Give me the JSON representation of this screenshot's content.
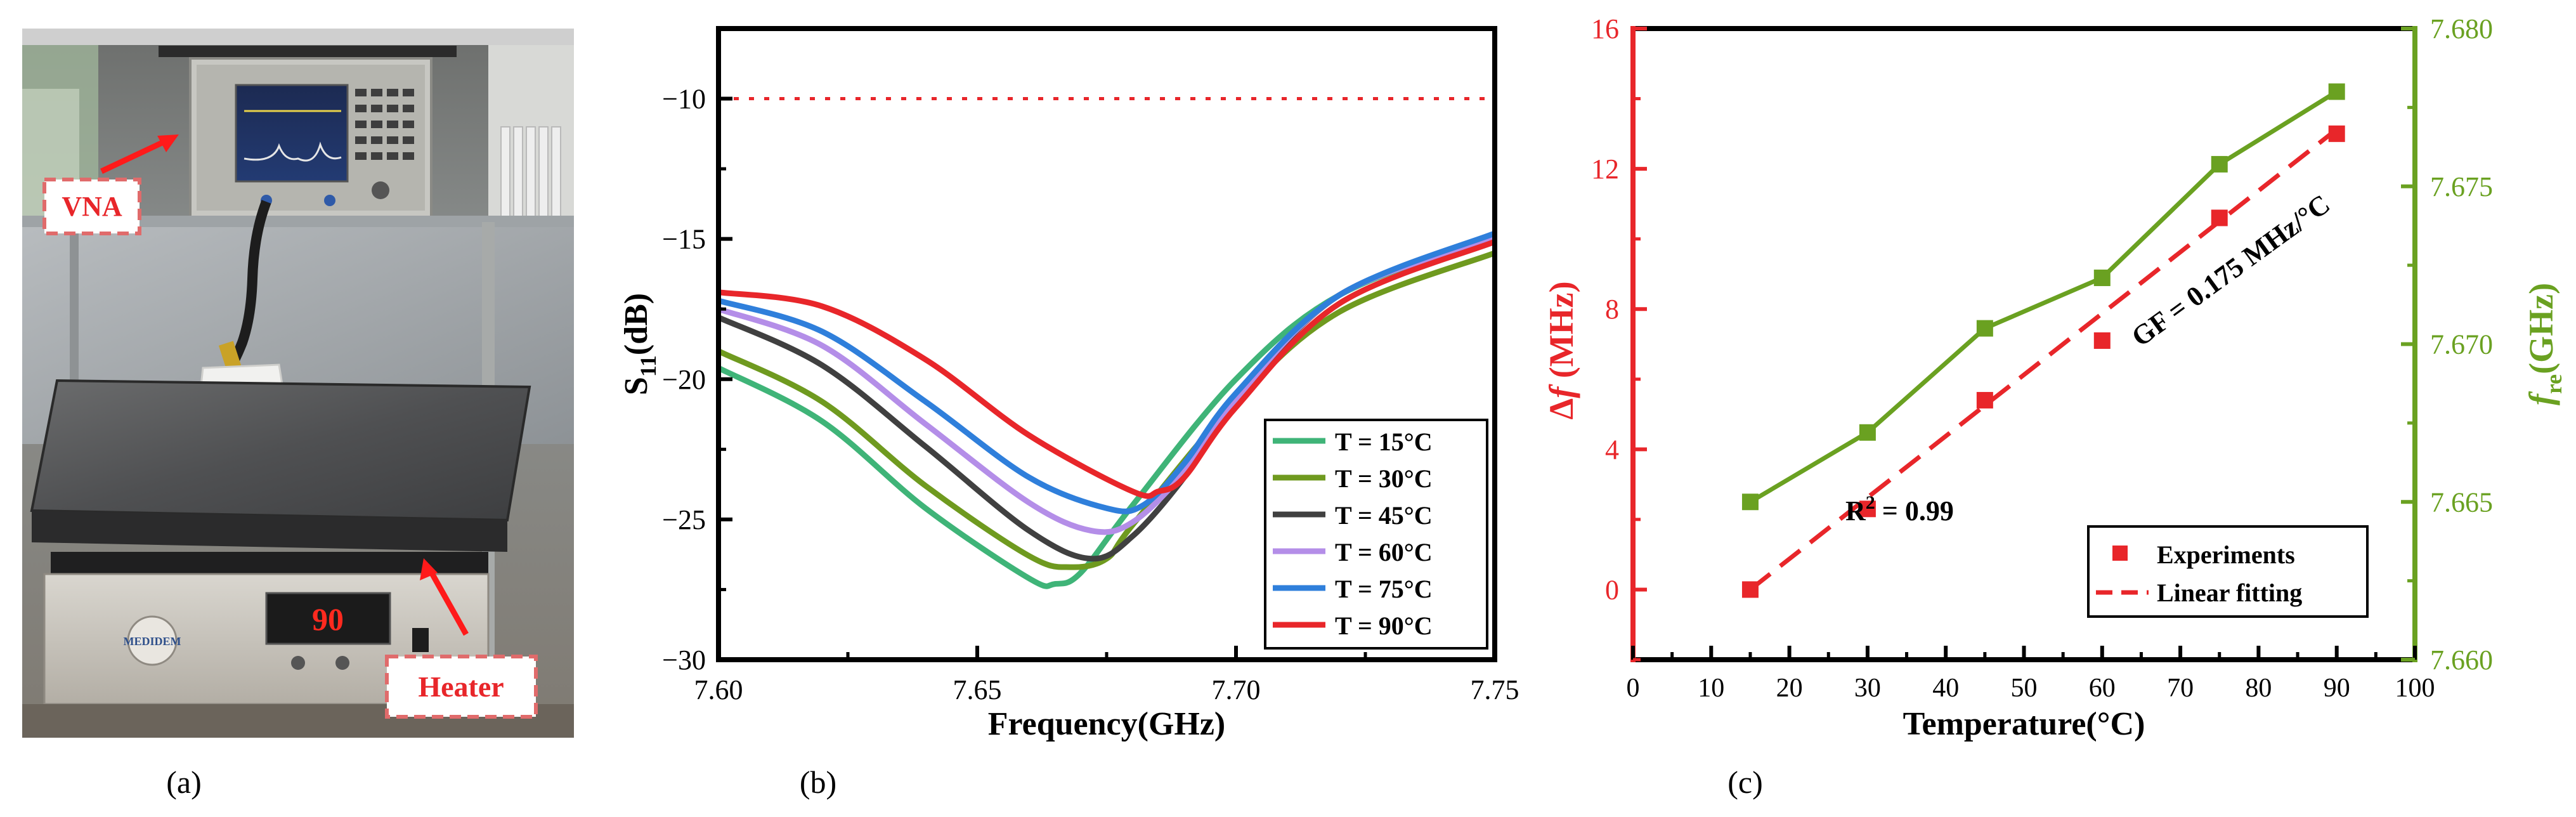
{
  "panels": {
    "a": {
      "caption": "(a)",
      "labels": {
        "vna": "VNA",
        "heater": "Heater"
      },
      "heater_display": "90",
      "heater_brand": "MEDIDEM"
    },
    "b": {
      "caption": "(b)"
    },
    "c": {
      "caption": "(c)"
    }
  },
  "colors": {
    "accent_red": "#e8262a",
    "accent_green": "#6aa121",
    "series_15": "#3fb478",
    "series_30": "#6f9a1f",
    "series_45": "#404040",
    "series_60": "#b48ee8",
    "series_75": "#2f7fdb",
    "series_90": "#e8262a"
  },
  "chart_data": [
    {
      "type": "line",
      "panel": "b",
      "xlabel": "Frequency(GHz)",
      "ylabel": "S11(dB)",
      "ylabel_main": "S",
      "ylabel_sub": "11",
      "ylabel_unit": "(dB)",
      "xlim": [
        7.6,
        7.75
      ],
      "ylim": [
        -30,
        -7.5
      ],
      "xticks": [
        "7.60",
        "7.65",
        "7.70",
        "7.75"
      ],
      "xtick_values": [
        7.6,
        7.65,
        7.7,
        7.75
      ],
      "yticks": [
        "−30",
        "−25",
        "−20",
        "−15",
        "−10"
      ],
      "ytick_values": [
        -30,
        -25,
        -20,
        -15,
        -10
      ],
      "threshold": {
        "y": -10,
        "style": "dotted",
        "color": "#e8262a"
      },
      "legend_position": "bottom-right",
      "series": [
        {
          "name": "T = 15°C",
          "color": "#3fb478",
          "x": [
            7.6,
            7.62,
            7.64,
            7.66,
            7.665,
            7.67,
            7.68,
            7.7,
            7.72,
            7.75
          ],
          "y": [
            -19.6,
            -21.5,
            -24.6,
            -27.1,
            -27.3,
            -26.9,
            -24.5,
            -20.0,
            -17.0,
            -14.9
          ]
        },
        {
          "name": "T = 30°C",
          "color": "#6f9a1f",
          "x": [
            7.6,
            7.62,
            7.64,
            7.66,
            7.668,
            7.675,
            7.68,
            7.7,
            7.72,
            7.75
          ],
          "y": [
            -19.0,
            -20.8,
            -23.8,
            -26.3,
            -26.7,
            -26.4,
            -25.2,
            -20.8,
            -17.6,
            -15.5
          ]
        },
        {
          "name": "T = 45°C",
          "color": "#404040",
          "x": [
            7.6,
            7.62,
            7.64,
            7.66,
            7.672,
            7.68,
            7.69,
            7.7,
            7.72,
            7.75
          ],
          "y": [
            -17.8,
            -19.5,
            -22.4,
            -25.4,
            -26.4,
            -25.6,
            -23.5,
            -20.8,
            -17.0,
            -15.0
          ]
        },
        {
          "name": "T = 60°C",
          "color": "#b48ee8",
          "x": [
            7.6,
            7.62,
            7.64,
            7.66,
            7.672,
            7.68,
            7.69,
            7.7,
            7.72,
            7.75
          ],
          "y": [
            -17.5,
            -18.8,
            -21.6,
            -24.4,
            -25.4,
            -25.1,
            -23.3,
            -20.7,
            -17.0,
            -15.0
          ]
        },
        {
          "name": "T = 75°C",
          "color": "#2f7fdb",
          "x": [
            7.6,
            7.62,
            7.64,
            7.66,
            7.675,
            7.682,
            7.69,
            7.7,
            7.72,
            7.75
          ],
          "y": [
            -17.2,
            -18.3,
            -20.8,
            -23.5,
            -24.6,
            -24.5,
            -23.0,
            -20.5,
            -17.0,
            -14.8
          ]
        },
        {
          "name": "T = 90°C",
          "color": "#e8262a",
          "x": [
            7.6,
            7.62,
            7.64,
            7.66,
            7.68,
            7.685,
            7.69,
            7.7,
            7.72,
            7.75
          ],
          "y": [
            -16.9,
            -17.4,
            -19.3,
            -22.0,
            -24.0,
            -24.0,
            -23.5,
            -21.0,
            -17.3,
            -15.1
          ]
        }
      ]
    },
    {
      "type": "scatter",
      "panel": "c",
      "xlabel": "Temperature(°C)",
      "xlim": [
        0,
        100
      ],
      "xticks": [
        "0",
        "10",
        "20",
        "30",
        "40",
        "50",
        "60",
        "70",
        "80",
        "90",
        "100"
      ],
      "xtick_values": [
        0,
        10,
        20,
        30,
        40,
        50,
        60,
        70,
        80,
        90,
        100
      ],
      "ylabel_left": "Δf (MHz)",
      "ylabel_left_parts": {
        "delta": "Δ",
        "f": "f",
        "unit": " (MHz)"
      },
      "ylim_left": [
        -2,
        16
      ],
      "yticks_left": [
        "0",
        "4",
        "8",
        "12",
        "16"
      ],
      "ytick_left_values": [
        0,
        4,
        8,
        12,
        16
      ],
      "ylabel_right": "fre(GHz)",
      "ylabel_right_parts": {
        "f": "f",
        "sub": "re",
        "unit": "(GHz)"
      },
      "ylim_right": [
        7.66,
        7.68
      ],
      "yticks_right": [
        "7.660",
        "7.665",
        "7.670",
        "7.675",
        "7.680"
      ],
      "ytick_right_values": [
        7.66,
        7.665,
        7.67,
        7.675,
        7.68
      ],
      "legend_position": "bottom-right",
      "series": [
        {
          "name": "Experiments",
          "axis": "left",
          "marker": "square",
          "color": "#e8262a",
          "x": [
            15,
            30,
            45,
            60,
            75,
            90
          ],
          "values": [
            0.0,
            2.3,
            5.4,
            7.1,
            10.6,
            13.0
          ]
        },
        {
          "name": "Linear fitting",
          "axis": "left",
          "style": "dashed",
          "color": "#e8262a",
          "x": [
            15,
            90
          ],
          "values": [
            0.0,
            13.125
          ]
        },
        {
          "name": "fre",
          "axis": "right",
          "marker": "square",
          "style": "solid",
          "color": "#6aa121",
          "x": [
            15,
            30,
            45,
            60,
            75,
            90
          ],
          "values": [
            7.665,
            7.6672,
            7.6705,
            7.6721,
            7.6757,
            7.678
          ]
        }
      ],
      "annotations": {
        "r2": "R² = 0.99",
        "r2_parts": {
          "base": "R",
          "sup": "2",
          "rest": " = 0.99"
        },
        "gf": "GF = 0.175 MHz/°C"
      }
    }
  ]
}
